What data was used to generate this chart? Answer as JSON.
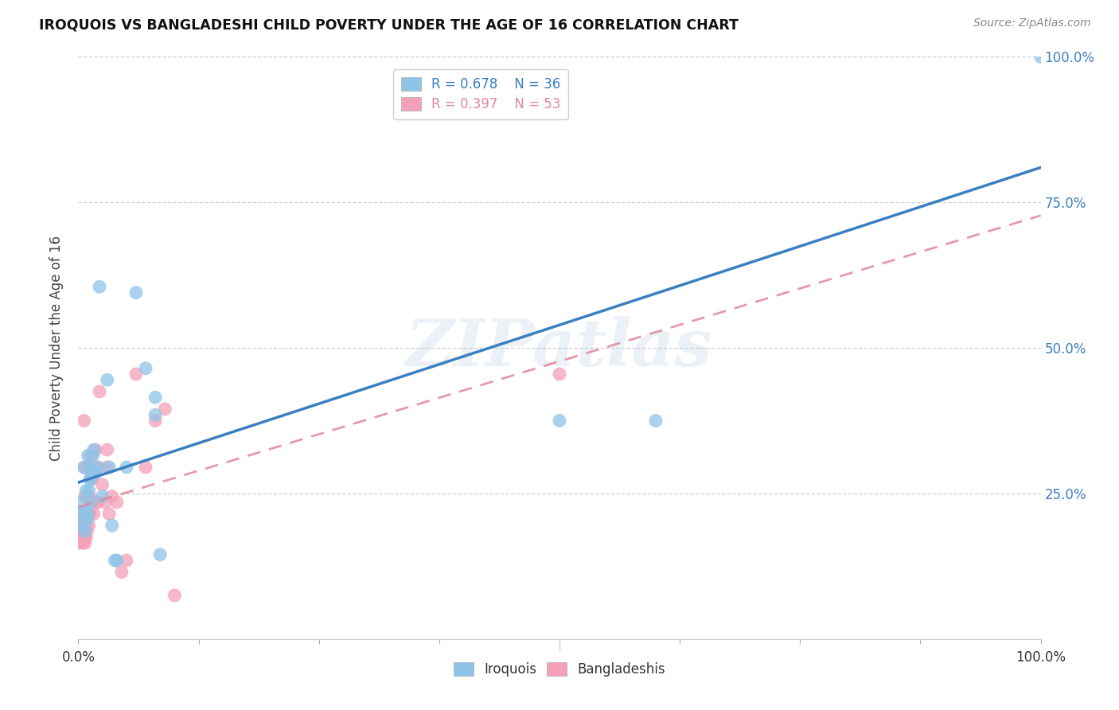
{
  "title": "IROQUOIS VS BANGLADESHI CHILD POVERTY UNDER THE AGE OF 16 CORRELATION CHART",
  "source": "Source: ZipAtlas.com",
  "ylabel": "Child Poverty Under the Age of 16",
  "watermark": "ZIPatlas",
  "iroquois_R": 0.678,
  "iroquois_N": 36,
  "bangladeshi_R": 0.397,
  "bangladeshi_N": 53,
  "iroquois_color": "#8ec4e8",
  "bangladeshi_color": "#f4a0b8",
  "iroquois_line_color": "#3a7fc1",
  "bangladeshi_line_color": "#e08898",
  "iroquois_scatter": [
    [
      0.002,
      0.215
    ],
    [
      0.003,
      0.235
    ],
    [
      0.005,
      0.195
    ],
    [
      0.006,
      0.22
    ],
    [
      0.006,
      0.295
    ],
    [
      0.007,
      0.185
    ],
    [
      0.008,
      0.255
    ],
    [
      0.009,
      0.205
    ],
    [
      0.01,
      0.215
    ],
    [
      0.01,
      0.315
    ],
    [
      0.011,
      0.255
    ],
    [
      0.012,
      0.275
    ],
    [
      0.012,
      0.295
    ],
    [
      0.013,
      0.235
    ],
    [
      0.013,
      0.275
    ],
    [
      0.015,
      0.285
    ],
    [
      0.015,
      0.315
    ],
    [
      0.016,
      0.325
    ],
    [
      0.018,
      0.285
    ],
    [
      0.02,
      0.295
    ],
    [
      0.022,
      0.605
    ],
    [
      0.025,
      0.245
    ],
    [
      0.03,
      0.445
    ],
    [
      0.032,
      0.295
    ],
    [
      0.035,
      0.195
    ],
    [
      0.038,
      0.135
    ],
    [
      0.04,
      0.135
    ],
    [
      0.05,
      0.295
    ],
    [
      0.06,
      0.595
    ],
    [
      0.07,
      0.465
    ],
    [
      0.08,
      0.415
    ],
    [
      0.08,
      0.385
    ],
    [
      0.085,
      0.145
    ],
    [
      0.5,
      0.375
    ],
    [
      0.6,
      0.375
    ],
    [
      1.0,
      1.0
    ]
  ],
  "bangladeshi_scatter": [
    [
      0.001,
      0.165
    ],
    [
      0.002,
      0.175
    ],
    [
      0.002,
      0.195
    ],
    [
      0.003,
      0.175
    ],
    [
      0.003,
      0.215
    ],
    [
      0.004,
      0.175
    ],
    [
      0.004,
      0.195
    ],
    [
      0.004,
      0.215
    ],
    [
      0.005,
      0.165
    ],
    [
      0.005,
      0.185
    ],
    [
      0.005,
      0.215
    ],
    [
      0.006,
      0.175
    ],
    [
      0.006,
      0.215
    ],
    [
      0.006,
      0.295
    ],
    [
      0.006,
      0.375
    ],
    [
      0.007,
      0.165
    ],
    [
      0.007,
      0.175
    ],
    [
      0.007,
      0.215
    ],
    [
      0.007,
      0.245
    ],
    [
      0.008,
      0.175
    ],
    [
      0.008,
      0.195
    ],
    [
      0.009,
      0.185
    ],
    [
      0.009,
      0.215
    ],
    [
      0.01,
      0.215
    ],
    [
      0.01,
      0.245
    ],
    [
      0.01,
      0.295
    ],
    [
      0.011,
      0.195
    ],
    [
      0.011,
      0.245
    ],
    [
      0.012,
      0.215
    ],
    [
      0.013,
      0.235
    ],
    [
      0.013,
      0.315
    ],
    [
      0.015,
      0.275
    ],
    [
      0.016,
      0.215
    ],
    [
      0.018,
      0.235
    ],
    [
      0.018,
      0.325
    ],
    [
      0.02,
      0.235
    ],
    [
      0.02,
      0.295
    ],
    [
      0.022,
      0.425
    ],
    [
      0.025,
      0.265
    ],
    [
      0.028,
      0.235
    ],
    [
      0.03,
      0.295
    ],
    [
      0.03,
      0.325
    ],
    [
      0.032,
      0.215
    ],
    [
      0.035,
      0.245
    ],
    [
      0.04,
      0.235
    ],
    [
      0.045,
      0.115
    ],
    [
      0.05,
      0.135
    ],
    [
      0.06,
      0.455
    ],
    [
      0.07,
      0.295
    ],
    [
      0.08,
      0.375
    ],
    [
      0.09,
      0.395
    ],
    [
      0.1,
      0.075
    ],
    [
      0.5,
      0.455
    ]
  ],
  "background_color": "#ffffff",
  "grid_color": "#d0d0d0",
  "xlim": [
    0.0,
    1.0
  ],
  "ylim": [
    0.0,
    1.0
  ],
  "xticks": [
    0.0,
    0.125,
    0.25,
    0.375,
    0.5,
    0.625,
    0.75,
    0.875,
    1.0
  ],
  "yticks": [
    0.0,
    0.25,
    0.5,
    0.75,
    1.0
  ],
  "right_ytick_labels": [
    "",
    "25.0%",
    "50.0%",
    "75.0%",
    "100.0%"
  ]
}
